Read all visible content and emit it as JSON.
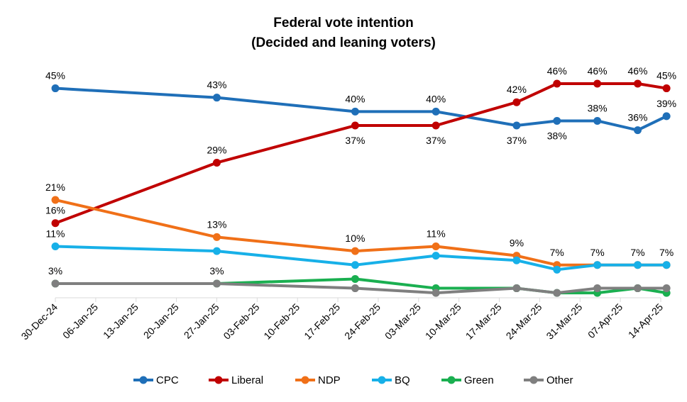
{
  "chart_data": {
    "type": "line",
    "title": [
      "Federal vote intention",
      "(Decided and leaning voters)"
    ],
    "x_ticks": [
      "30-Dec-24",
      "06-Jan-25",
      "13-Jan-25",
      "20-Jan-25",
      "27-Jan-25",
      "03-Feb-25",
      "10-Feb-25",
      "17-Feb-25",
      "24-Feb-25",
      "03-Mar-25",
      "10-Mar-25",
      "17-Mar-25",
      "24-Mar-25",
      "31-Mar-25",
      "07-Apr-25",
      "14-Apr-25"
    ],
    "x_dates": [
      "2024-12-30",
      "2025-01-27",
      "2025-02-20",
      "2025-03-06",
      "2025-03-20",
      "2025-03-27",
      "2025-04-03",
      "2025-04-10",
      "2025-04-15"
    ],
    "ylim": [
      0,
      50
    ],
    "grid": false,
    "legend_position": "bottom",
    "series": [
      {
        "name": "CPC",
        "color": "#1F6FB8",
        "values": [
          45,
          43,
          40,
          40,
          37,
          38,
          38,
          36,
          39
        ],
        "labels": [
          "45%",
          "43%",
          "40%",
          "40%",
          "37%",
          "38%",
          "38%",
          "36%",
          "39%"
        ],
        "label_pos": [
          "above",
          "above",
          "above",
          "above",
          "below",
          "below",
          "above",
          "above",
          "above"
        ]
      },
      {
        "name": "Liberal",
        "color": "#C00000",
        "values": [
          16,
          29,
          37,
          37,
          42,
          46,
          46,
          46,
          45
        ],
        "labels": [
          "16%",
          "29%",
          "37%",
          "37%",
          "42%",
          "46%",
          "46%",
          "46%",
          "45%"
        ],
        "label_pos": [
          "above",
          "above",
          "below",
          "below",
          "above",
          "above",
          "above",
          "above",
          "above"
        ]
      },
      {
        "name": "NDP",
        "color": "#F07018",
        "values": [
          21,
          13,
          10,
          11,
          9,
          7,
          7,
          7,
          7
        ],
        "labels": [
          "21%",
          "13%",
          "10%",
          "11%",
          "9%",
          "7%",
          "7%",
          "7%",
          "7%"
        ],
        "label_pos": [
          "above",
          "above",
          "above",
          "above",
          "above",
          "above",
          "above",
          "above",
          "above"
        ]
      },
      {
        "name": "BQ",
        "color": "#17B0E8",
        "values": [
          11,
          10,
          7,
          9,
          8,
          6,
          7,
          7,
          7
        ],
        "labels": [
          "11%",
          "",
          "",
          "",
          "",
          "",
          "",
          "",
          ""
        ],
        "label_pos": [
          "above",
          "above",
          "above",
          "above",
          "above",
          "above",
          "above",
          "above",
          "above"
        ]
      },
      {
        "name": "Green",
        "color": "#1AAF50",
        "values": [
          3,
          3,
          4,
          2,
          2,
          1,
          1,
          2,
          1
        ],
        "labels": [
          "",
          "",
          "",
          "",
          "",
          "",
          "",
          "",
          ""
        ],
        "label_pos": [
          "above",
          "above",
          "above",
          "above",
          "above",
          "above",
          "above",
          "above",
          "above"
        ]
      },
      {
        "name": "Other",
        "color": "#7F7F7F",
        "values": [
          3,
          3,
          2,
          1,
          2,
          1,
          2,
          2,
          2
        ],
        "labels": [
          "3%",
          "3%",
          "",
          "",
          "",
          "",
          "",
          "",
          ""
        ],
        "label_pos": [
          "above",
          "above",
          "above",
          "above",
          "above",
          "above",
          "above",
          "above",
          "above"
        ]
      }
    ]
  }
}
